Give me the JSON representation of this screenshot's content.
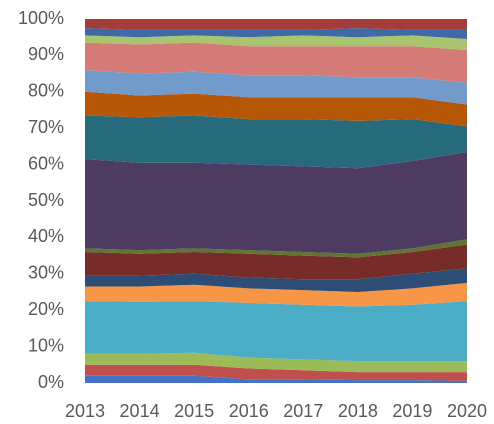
{
  "chart_data": {
    "type": "stacked_area_100",
    "categories": [
      "2013",
      "2014",
      "2015",
      "2016",
      "2017",
      "2018",
      "2019",
      "2020"
    ],
    "series": [
      {
        "color": "#4472c4",
        "values": [
          2,
          2,
          2,
          1,
          1,
          0.8,
          0.8,
          0.6
        ]
      },
      {
        "color": "#c0504d",
        "values": [
          3,
          3,
          3,
          3,
          2.5,
          2.2,
          2.2,
          2.4
        ]
      },
      {
        "color": "#9bbb59",
        "values": [
          3,
          3,
          3.3,
          3,
          3,
          3,
          3,
          3
        ]
      },
      {
        "color": "#4bacc6",
        "values": [
          14.5,
          14.3,
          14.2,
          15,
          15,
          15,
          15.5,
          16.5
        ]
      },
      {
        "color": "#f79646",
        "values": [
          4,
          4.2,
          4.5,
          4,
          4,
          4,
          4.5,
          5
        ]
      },
      {
        "color": "#2c4d75",
        "values": [
          3,
          3,
          3,
          3,
          3,
          3.5,
          4,
          4
        ]
      },
      {
        "color": "#772c2a",
        "values": [
          6.5,
          6,
          6,
          6.5,
          6.5,
          6,
          6,
          6.5
        ]
      },
      {
        "color": "#5f7530",
        "values": [
          1,
          1,
          1,
          1,
          1,
          1,
          1,
          1.5
        ]
      },
      {
        "color": "#4d3b62",
        "values": [
          24.5,
          24,
          23.5,
          23.5,
          23.5,
          23.5,
          24,
          24
        ]
      },
      {
        "color": "#276a7c",
        "values": [
          12,
          12.5,
          13,
          12.5,
          13,
          13,
          11.5,
          7
        ]
      },
      {
        "color": "#b65708",
        "values": [
          6.5,
          6,
          6,
          6,
          6,
          6.5,
          6,
          6
        ]
      },
      {
        "color": "#729aca",
        "values": [
          6,
          6,
          6,
          6,
          6,
          5.5,
          5.5,
          6
        ]
      },
      {
        "color": "#d47b78",
        "values": [
          7.5,
          8,
          8,
          8,
          8,
          8.5,
          8.5,
          9
        ]
      },
      {
        "color": "#a9c46f",
        "values": [
          2,
          2,
          2,
          2.5,
          3,
          2.5,
          3,
          3
        ]
      },
      {
        "color": "#3f6aa6",
        "values": [
          2,
          2,
          1.5,
          2,
          1.5,
          2.5,
          1.5,
          2.5
        ]
      },
      {
        "color": "#a43c3a",
        "values": [
          2.5,
          3,
          3,
          3,
          3,
          2.5,
          3,
          3
        ]
      }
    ],
    "ylim": [
      0,
      100
    ],
    "yticks": [
      {
        "value": 0,
        "label": "0%"
      },
      {
        "value": 10,
        "label": "10%"
      },
      {
        "value": 20,
        "label": "20%"
      },
      {
        "value": 30,
        "label": "30%"
      },
      {
        "value": 40,
        "label": "40%"
      },
      {
        "value": 50,
        "label": "50%"
      },
      {
        "value": 60,
        "label": "60%"
      },
      {
        "value": 70,
        "label": "70%"
      },
      {
        "value": 80,
        "label": "80%"
      },
      {
        "value": 90,
        "label": "90%"
      },
      {
        "value": 100,
        "label": "100%"
      }
    ]
  }
}
